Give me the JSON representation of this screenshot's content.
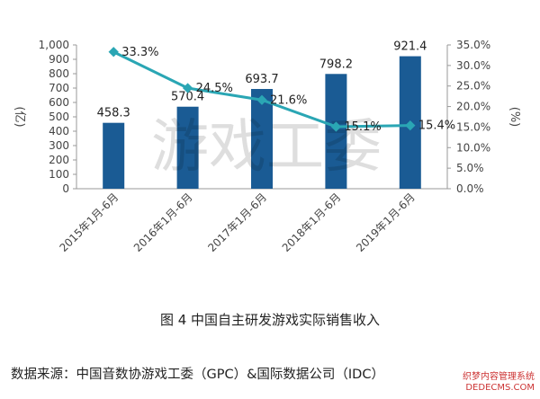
{
  "chart_data": {
    "type": "bar",
    "categories": [
      "2015年1月-6月",
      "2016年1月-6月",
      "2017年1月-6月",
      "2018年1月-6月",
      "2019年1月-6月"
    ],
    "series": [
      {
        "type": "bar",
        "axis": "left",
        "color": "#1a5b94",
        "values": [
          458.3,
          570.4,
          693.7,
          798.2,
          921.4
        ],
        "labels": [
          "458.3",
          "570.4",
          "693.7",
          "798.2",
          "921.4"
        ]
      },
      {
        "type": "line",
        "axis": "right",
        "color": "#2aa6b4",
        "values": [
          33.3,
          24.5,
          21.6,
          15.1,
          15.4
        ],
        "labels": [
          "33.3%",
          "24.5%",
          "21.6%",
          "15.1%",
          "15.4%"
        ]
      }
    ],
    "ylabel": "(亿)",
    "y2label": "(%)",
    "ylim": [
      0,
      1000
    ],
    "y2lim": [
      0,
      35
    ],
    "yticks": [
      "0",
      "100",
      "200",
      "300",
      "400",
      "500",
      "600",
      "700",
      "800",
      "900",
      "1,000"
    ],
    "y2ticks": [
      "0.0%",
      "5.0%",
      "10.0%",
      "15.0%",
      "20.0%",
      "25.0%",
      "30.0%",
      "35.0%"
    ],
    "grid": false,
    "legend": "none"
  },
  "figure_title": "图 4 中国自主研发游戏实际销售收入",
  "source": "数据来源：中国音数协游戏工委（GPC）&国际数据公司（IDC）",
  "watermark": "游戏工委",
  "corner_watermark": [
    "织梦内容管理系统",
    "DEDECMS.COM"
  ]
}
